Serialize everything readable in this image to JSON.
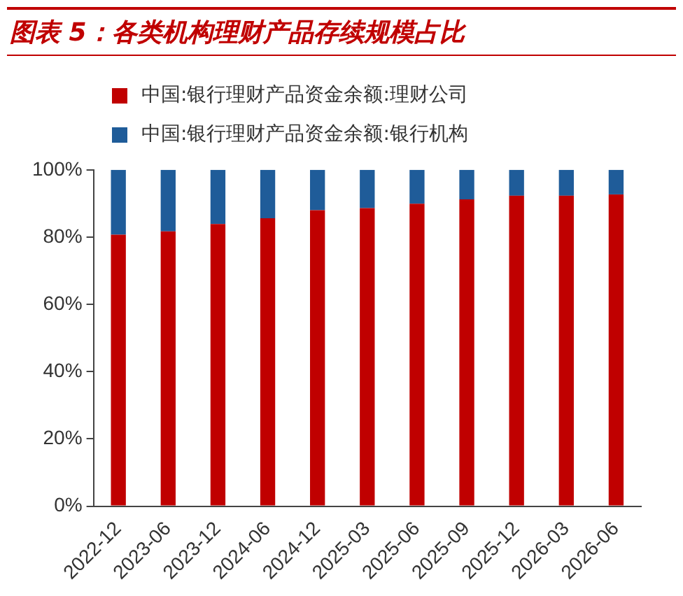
{
  "chart_data": {
    "type": "bar",
    "title": "图表 5：各类机构理财产品存续规模占比",
    "stacked": true,
    "legend": "top",
    "categories": [
      "2022-12",
      "2023-06",
      "2023-12",
      "2024-06",
      "2024-12",
      "2025-03",
      "2025-06",
      "2025-09",
      "2025-12",
      "2026-03",
      "2026-06"
    ],
    "series": [
      {
        "name": "中国:银行理财产品资金余额:理财公司",
        "color": "#c00000",
        "values": [
          80.7,
          81.7,
          83.9,
          85.6,
          88.0,
          88.6,
          89.9,
          91.2,
          92.3,
          92.3,
          92.7
        ]
      },
      {
        "name": "中国:银行理财产品资金余额:银行机构",
        "color": "#1f5c99",
        "values": [
          19.3,
          18.3,
          16.1,
          14.4,
          12.0,
          11.4,
          10.1,
          8.8,
          7.7,
          7.7,
          7.3
        ]
      }
    ],
    "ylim": [
      0,
      100
    ],
    "yticks": [
      {
        "value": 0,
        "label": "0%"
      },
      {
        "value": 20,
        "label": "20%"
      },
      {
        "value": 40,
        "label": "40%"
      },
      {
        "value": 60,
        "label": "60%"
      },
      {
        "value": 80,
        "label": "80%"
      },
      {
        "value": 100,
        "label": "100%"
      }
    ],
    "grid": false
  }
}
